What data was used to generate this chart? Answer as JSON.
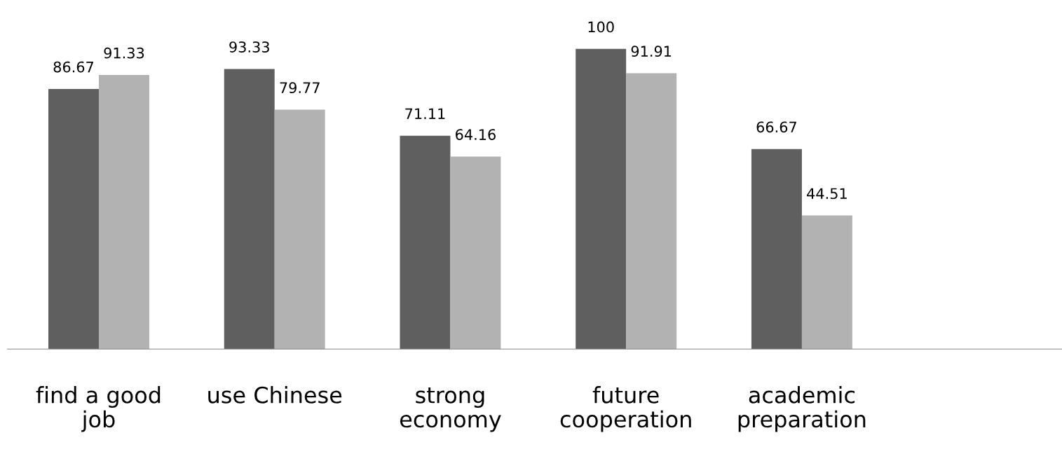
{
  "chart_data": {
    "type": "bar",
    "categories": [
      "find a good\njob",
      "use Chinese",
      "strong\neconomy",
      "future\ncooperation",
      "academic\npreparation"
    ],
    "series": [
      {
        "color": "#5f5f5f",
        "values": [
          86.67,
          93.33,
          71.11,
          100,
          66.67
        ]
      },
      {
        "color": "#b2b2b2",
        "values": [
          91.33,
          79.77,
          64.16,
          91.91,
          44.51
        ]
      }
    ],
    "data_labels": true,
    "grid": false,
    "legend": false
  }
}
